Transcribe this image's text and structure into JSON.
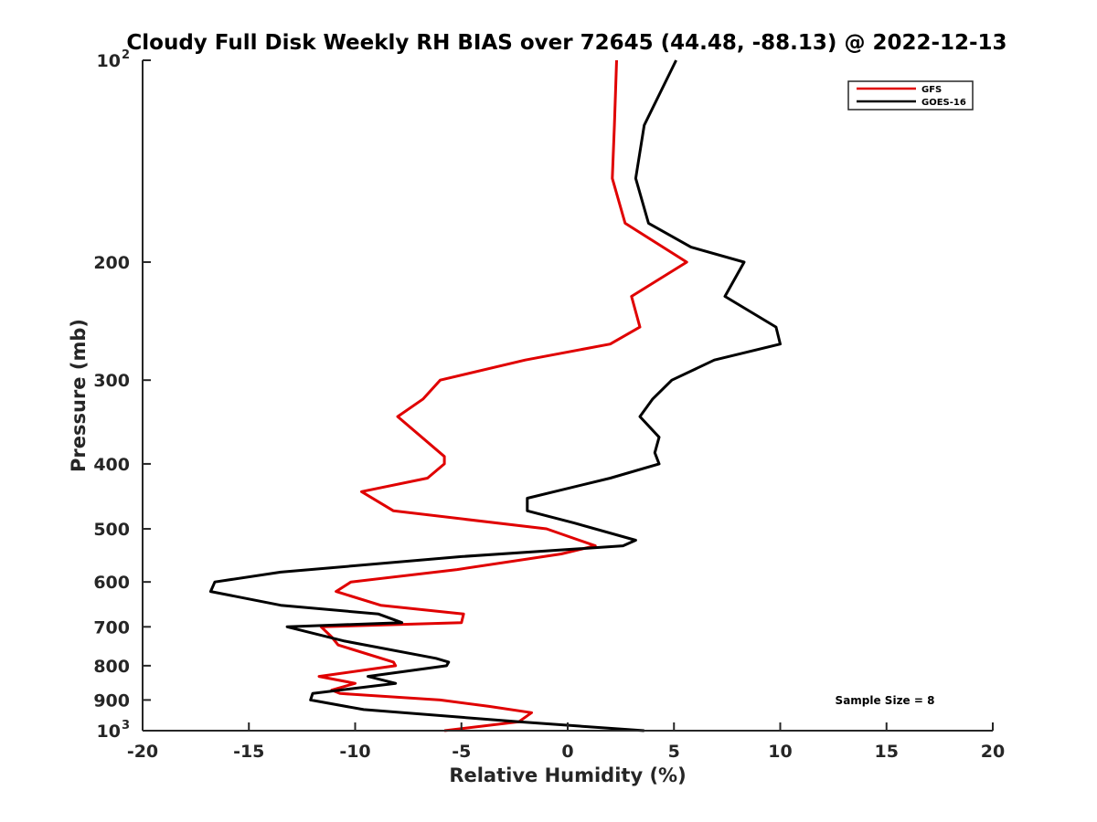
{
  "chart_data": {
    "type": "line",
    "title": "Cloudy Full Disk Weekly RH BIAS over 72645 (44.48, -88.13) @ 2022-12-13",
    "xlabel": "Relative Humidity (%)",
    "ylabel": "Pressure (mb)",
    "xlim": [
      -20,
      20
    ],
    "ylim": [
      100,
      1000
    ],
    "yscale": "log",
    "y_reversed": true,
    "grid": false,
    "legend_position": "top-right",
    "x_ticks": [
      "-20",
      "-15",
      "-10",
      "-5",
      "0",
      "5",
      "10",
      "15",
      "20"
    ],
    "y_ticks": [
      {
        "value": 100,
        "label": "10",
        "sup": "2"
      },
      {
        "value": 200,
        "label": "200",
        "sup": ""
      },
      {
        "value": 300,
        "label": "300",
        "sup": ""
      },
      {
        "value": 400,
        "label": "400",
        "sup": ""
      },
      {
        "value": 500,
        "label": "500",
        "sup": ""
      },
      {
        "value": 600,
        "label": "600",
        "sup": ""
      },
      {
        "value": 700,
        "label": "700",
        "sup": ""
      },
      {
        "value": 800,
        "label": "800",
        "sup": ""
      },
      {
        "value": 900,
        "label": "900",
        "sup": ""
      },
      {
        "value": 1000,
        "label": "10",
        "sup": "3"
      }
    ],
    "annotation": "Sample Size = 8",
    "series": [
      {
        "name": "GFS",
        "color": "#e00000",
        "points": [
          [
            2.3,
            100
          ],
          [
            2.2,
            125
          ],
          [
            2.1,
            150
          ],
          [
            2.7,
            175
          ],
          [
            5.6,
            200
          ],
          [
            3.0,
            225
          ],
          [
            3.4,
            250
          ],
          [
            2.0,
            265
          ],
          [
            -2.0,
            280
          ],
          [
            -6.0,
            300
          ],
          [
            -6.8,
            320
          ],
          [
            -8.0,
            340
          ],
          [
            -5.8,
            390
          ],
          [
            -5.8,
            400
          ],
          [
            -6.6,
            420
          ],
          [
            -9.7,
            440
          ],
          [
            -8.2,
            470
          ],
          [
            -1.0,
            500
          ],
          [
            1.3,
            530
          ],
          [
            -0.3,
            545
          ],
          [
            -5.2,
            575
          ],
          [
            -10.2,
            600
          ],
          [
            -10.9,
            620
          ],
          [
            -8.8,
            650
          ],
          [
            -4.9,
            670
          ],
          [
            -5.0,
            690
          ],
          [
            -11.6,
            700
          ],
          [
            -11.1,
            725
          ],
          [
            -10.8,
            745
          ],
          [
            -8.2,
            790
          ],
          [
            -8.1,
            800
          ],
          [
            -11.7,
            830
          ],
          [
            -10.0,
            850
          ],
          [
            -11.1,
            870
          ],
          [
            -10.7,
            880
          ],
          [
            -6.0,
            900
          ],
          [
            -3.7,
            920
          ],
          [
            -1.7,
            940
          ],
          [
            -2.3,
            970
          ],
          [
            -5.8,
            1000
          ]
        ]
      },
      {
        "name": "GOES-16",
        "color": "#000000",
        "points": [
          [
            5.1,
            100
          ],
          [
            3.6,
            125
          ],
          [
            3.2,
            150
          ],
          [
            3.8,
            175
          ],
          [
            5.8,
            190
          ],
          [
            8.3,
            200
          ],
          [
            7.4,
            225
          ],
          [
            9.8,
            250
          ],
          [
            10.0,
            265
          ],
          [
            6.9,
            280
          ],
          [
            4.9,
            300
          ],
          [
            4.0,
            320
          ],
          [
            3.4,
            340
          ],
          [
            4.3,
            365
          ],
          [
            4.1,
            385
          ],
          [
            4.3,
            400
          ],
          [
            2.0,
            420
          ],
          [
            -1.9,
            450
          ],
          [
            -1.9,
            470
          ],
          [
            0.3,
            490
          ],
          [
            3.2,
            520
          ],
          [
            2.6,
            530
          ],
          [
            -5.0,
            550
          ],
          [
            -13.5,
            580
          ],
          [
            -16.6,
            600
          ],
          [
            -16.8,
            620
          ],
          [
            -13.5,
            650
          ],
          [
            -8.9,
            670
          ],
          [
            -7.8,
            690
          ],
          [
            -13.2,
            700
          ],
          [
            -10.5,
            735
          ],
          [
            -6.2,
            780
          ],
          [
            -5.6,
            790
          ],
          [
            -5.7,
            800
          ],
          [
            -9.4,
            830
          ],
          [
            -8.1,
            850
          ],
          [
            -12.0,
            880
          ],
          [
            -12.1,
            900
          ],
          [
            -9.6,
            930
          ],
          [
            -2.3,
            970
          ],
          [
            3.6,
            1000
          ]
        ]
      }
    ]
  }
}
